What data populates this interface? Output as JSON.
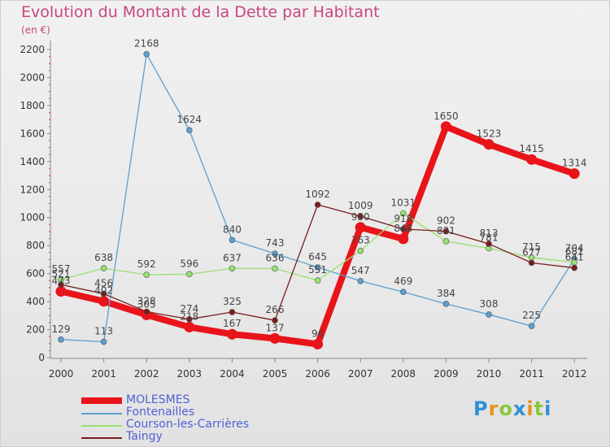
{
  "title": "Evolution du Montant de la Dette par Habitant",
  "unit": "(en €)",
  "logo": {
    "letters": [
      "P",
      "r",
      "o",
      "x",
      "i",
      "t",
      "i"
    ],
    "colors": [
      "#2f8fd8",
      "#e8911c",
      "#8cc63f",
      "#2f8fd8",
      "#e8911c",
      "#8cc63f",
      "#2f8fd8"
    ]
  },
  "chart_data": {
    "type": "line",
    "x": [
      "2000",
      "2001",
      "2002",
      "2003",
      "2004",
      "2005",
      "2006",
      "2007",
      "2008",
      "2009",
      "2010",
      "2011",
      "2012"
    ],
    "ylim": [
      0,
      2200
    ],
    "yticks": [
      "0",
      "200",
      "400",
      "600",
      "800",
      "1000",
      "1200",
      "1400",
      "1600",
      "1800",
      "2000",
      "2200"
    ],
    "grid": false,
    "legend_position": "bottom-left",
    "series": [
      {
        "name": "MOLESMES",
        "color": "#e8141a",
        "width": 8,
        "values": [
          473,
          402,
          305,
          218,
          167,
          137,
          96,
          930,
          848,
          1650,
          1523,
          1415,
          1314
        ],
        "labels": [
          "473",
          "402",
          "305",
          "218",
          "167",
          "137",
          "96",
          "930",
          "848",
          "1650",
          "1523",
          "1415",
          "1314"
        ]
      },
      {
        "name": "Fontenailles",
        "color": "#5b9fd0",
        "width": 1.3,
        "values": [
          129,
          113,
          2168,
          1624,
          840,
          743,
          645,
          547,
          469,
          384,
          308,
          225,
          704
        ],
        "labels": [
          "129",
          "113",
          "2168",
          "1624",
          "840",
          "743",
          "645",
          "547",
          "469",
          "384",
          "308",
          "225",
          "704"
        ]
      },
      {
        "name": "Courson-les-Carrières",
        "color": "#98e070",
        "width": 1.3,
        "values": [
          557,
          638,
          592,
          596,
          637,
          636,
          551,
          763,
          1031,
          831,
          781,
          715,
          681
        ],
        "labels": [
          "557",
          "638",
          "592",
          "596",
          "637",
          "636",
          "551",
          "763",
          "1031",
          "831",
          "781",
          "715",
          "681"
        ]
      },
      {
        "name": "Taingy",
        "color": "#7a1c1c",
        "width": 1.3,
        "values": [
          521,
          456,
          328,
          274,
          325,
          266,
          1092,
          1009,
          918,
          902,
          813,
          677,
          641
        ],
        "labels": [
          "521",
          "456",
          "328",
          "274",
          "325",
          "266",
          "1092",
          "1009",
          "918",
          "902",
          "813",
          "677",
          "641"
        ]
      }
    ]
  }
}
